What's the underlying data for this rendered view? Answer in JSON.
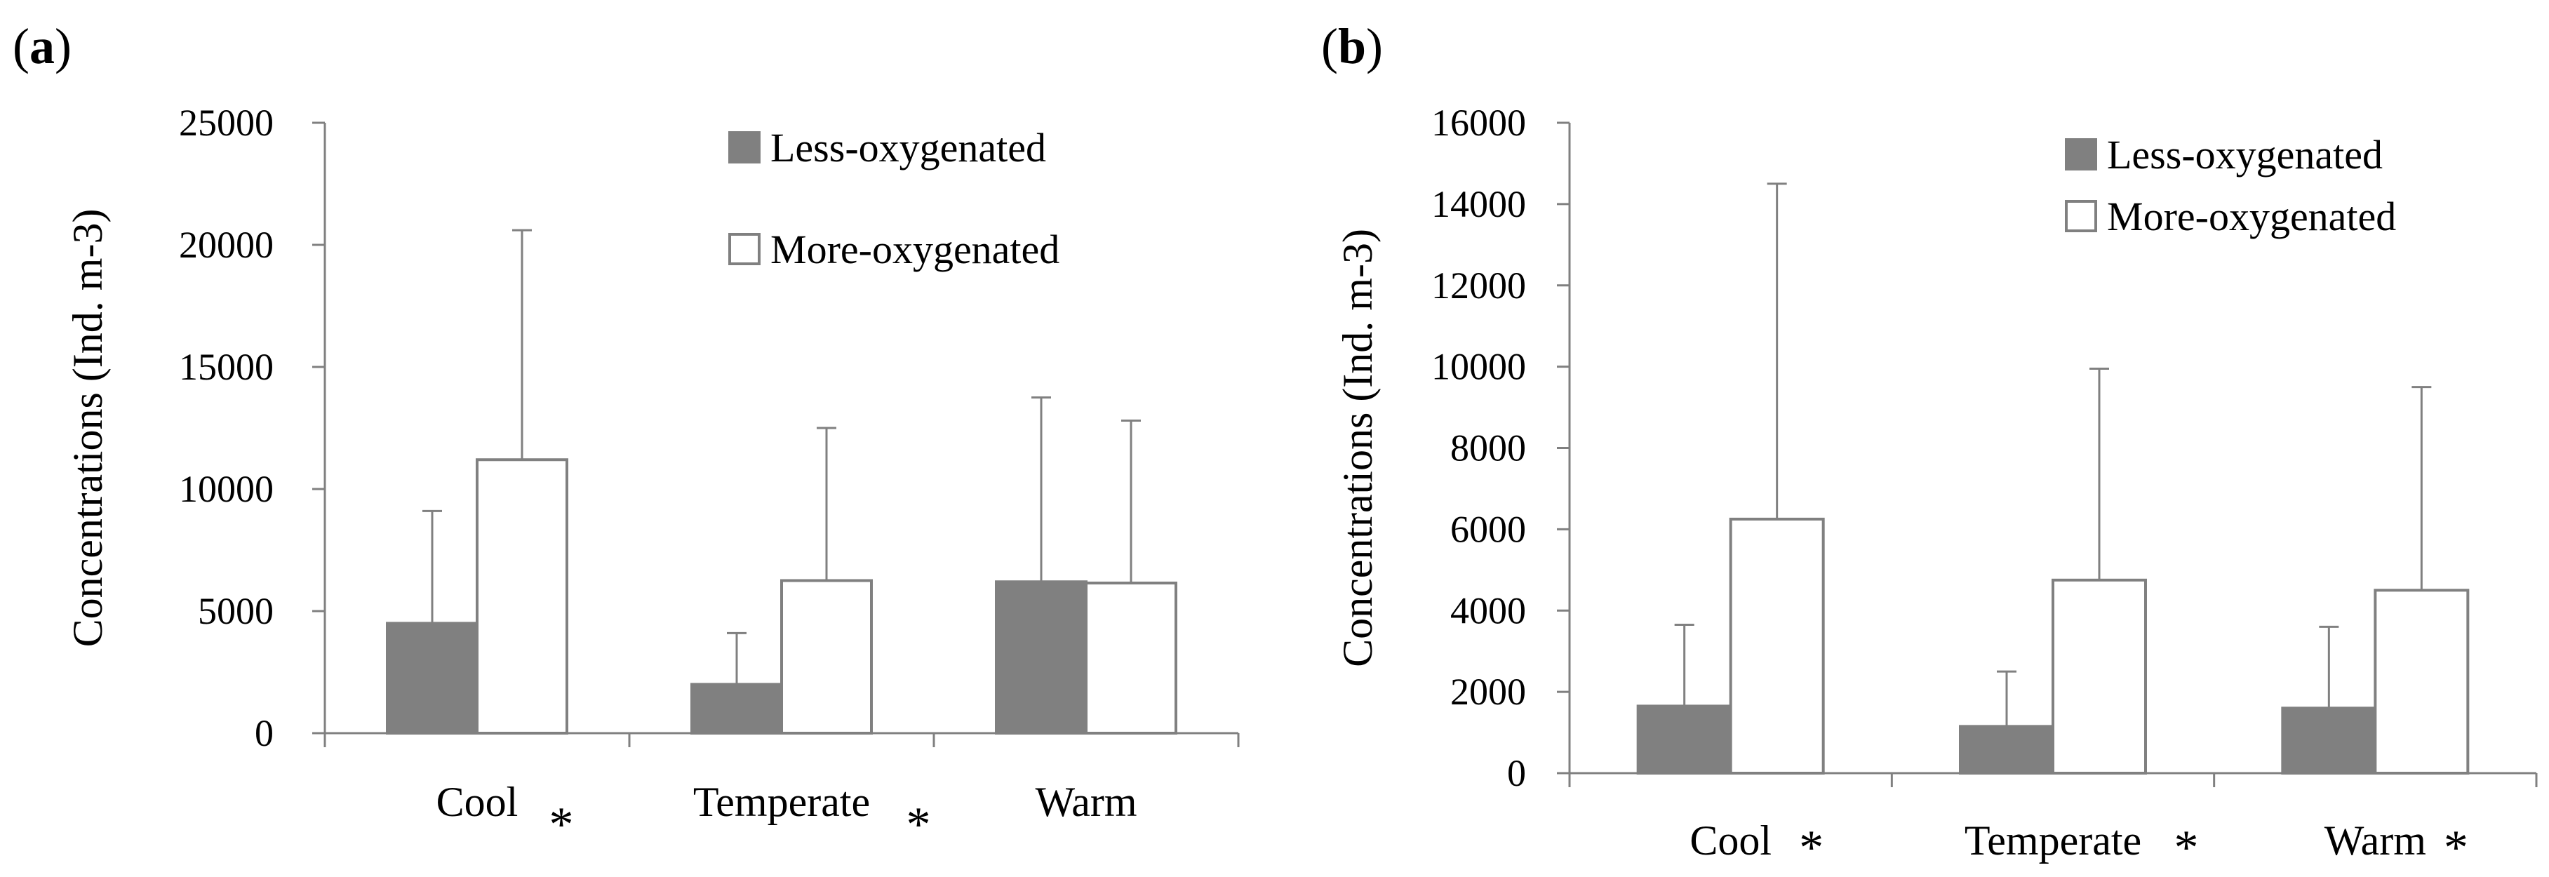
{
  "charts": [
    {
      "panel": "(a)",
      "panel_letter": "a",
      "chart_data": {
        "type": "bar",
        "ylabel": "Concentrations (Ind. m-3)",
        "ylim": [
          0,
          25000
        ],
        "yticks": [
          0,
          5000,
          10000,
          15000,
          20000,
          25000
        ],
        "categories": [
          "Cool",
          "Temperate",
          "Warm"
        ],
        "significance_marks": [
          "*",
          "*",
          ""
        ],
        "series": [
          {
            "name": "Less-oxygenated",
            "values": [
              4500,
              2000,
              6200
            ],
            "errors": [
              4600,
              2100,
              7550
            ],
            "fill": "#808080"
          },
          {
            "name": "More-oxygenated",
            "values": [
              11200,
              6250,
              6150
            ],
            "errors": [
              9400,
              6250,
              6650
            ],
            "fill": "#ffffff"
          }
        ],
        "legend_position": "top-right",
        "grid": false
      }
    },
    {
      "panel": "(b)",
      "panel_letter": "b",
      "chart_data": {
        "type": "bar",
        "ylabel": "Concentrations (Ind. m-3)",
        "ylim": [
          0,
          16000
        ],
        "yticks": [
          0,
          2000,
          4000,
          6000,
          8000,
          10000,
          12000,
          14000,
          16000
        ],
        "categories": [
          "Cool",
          "Temperate",
          "Warm"
        ],
        "significance_marks": [
          "*",
          "*",
          "*"
        ],
        "series": [
          {
            "name": "Less-oxygenated",
            "values": [
              1650,
              1150,
              1600
            ],
            "errors": [
              2000,
              1350,
              2000
            ],
            "fill": "#808080"
          },
          {
            "name": "More-oxygenated",
            "values": [
              6250,
              4750,
              4500
            ],
            "errors": [
              8250,
              5200,
              5000
            ],
            "fill": "#ffffff"
          }
        ],
        "legend_position": "top-right",
        "grid": false
      }
    }
  ],
  "colors": {
    "axis": "#808080",
    "less_fill": "#808080",
    "more_fill": "#ffffff",
    "stroke": "#808080"
  }
}
